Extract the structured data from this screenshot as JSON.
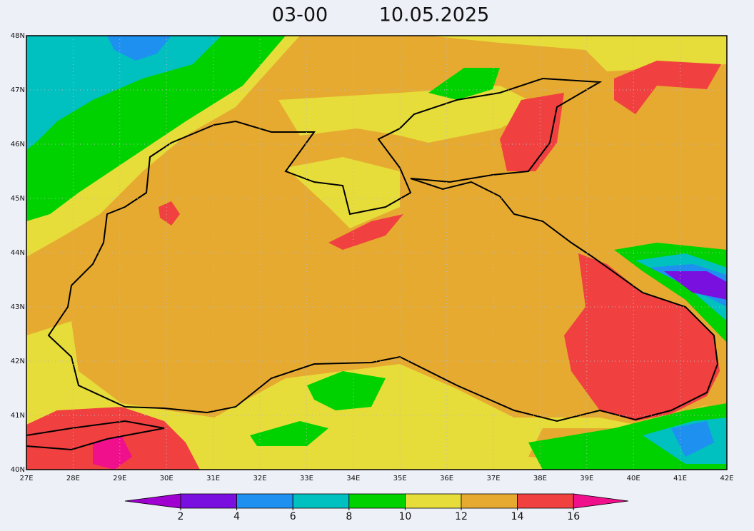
{
  "title": {
    "time": "03-00",
    "date": "10.05.2025"
  },
  "lat_labels": [
    "48N",
    "47N",
    "46N",
    "45N",
    "44N",
    "43N",
    "42N",
    "41N",
    "40N"
  ],
  "lon_labels": [
    "27E",
    "28E",
    "29E",
    "30E",
    "31E",
    "32E",
    "33E",
    "34E",
    "35E",
    "36E",
    "37E",
    "38E",
    "39E",
    "40E",
    "41E",
    "42E"
  ],
  "colorbar": {
    "ticks": [
      2,
      4,
      6,
      8,
      10,
      12,
      14,
      16
    ],
    "colors": [
      "#a000d0",
      "#7a10e0",
      "#1e90f0",
      "#00c0c0",
      "#00d200",
      "#e6dc3a",
      "#e6aa30",
      "#f04040",
      "#f0108c"
    ]
  }
}
